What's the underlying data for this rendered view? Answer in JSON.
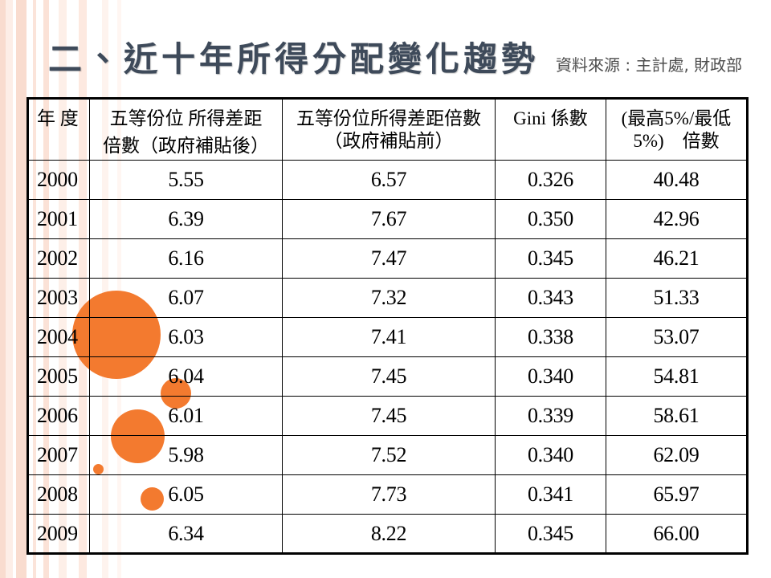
{
  "theme": {
    "title_color": "#3e4a5a",
    "accent_orange": "#f37a2f",
    "stripe_pink": "#f9dccf",
    "table_border": "#000000"
  },
  "slide": {
    "title": "二、近十年所得分配變化趨勢",
    "source": "資料來源 : 主計處, 財政部"
  },
  "table": {
    "headers": [
      {
        "lines": [
          "年 度"
        ]
      },
      {
        "lines": [
          "五等份位 所得差距",
          "倍數（政府補貼後）"
        ]
      },
      {
        "lines": [
          "五等份位所得差距倍數",
          "（政府補貼前）"
        ]
      },
      {
        "lines": [
          "Gini 係數"
        ]
      },
      {
        "lines": [
          "(最高5%/最低",
          "5%)　倍數"
        ]
      }
    ],
    "rows": [
      {
        "year": "2000",
        "ratio_after_subsidy": "5.55",
        "ratio_before_subsidy": "6.57",
        "gini": "0.326",
        "top_bottom_5pct_ratio": "40.48"
      },
      {
        "year": "2001",
        "ratio_after_subsidy": "6.39",
        "ratio_before_subsidy": "7.67",
        "gini": "0.350",
        "top_bottom_5pct_ratio": "42.96"
      },
      {
        "year": "2002",
        "ratio_after_subsidy": "6.16",
        "ratio_before_subsidy": "7.47",
        "gini": "0.345",
        "top_bottom_5pct_ratio": "46.21"
      },
      {
        "year": "2003",
        "ratio_after_subsidy": "6.07",
        "ratio_before_subsidy": "7.32",
        "gini": "0.343",
        "top_bottom_5pct_ratio": "51.33"
      },
      {
        "year": "2004",
        "ratio_after_subsidy": "6.03",
        "ratio_before_subsidy": "7.41",
        "gini": "0.338",
        "top_bottom_5pct_ratio": "53.07"
      },
      {
        "year": "2005",
        "ratio_after_subsidy": "6.04",
        "ratio_before_subsidy": "7.45",
        "gini": "0.340",
        "top_bottom_5pct_ratio": "54.81"
      },
      {
        "year": "2006",
        "ratio_after_subsidy": "6.01",
        "ratio_before_subsidy": "7.45",
        "gini": "0.339",
        "top_bottom_5pct_ratio": "58.61"
      },
      {
        "year": "2007",
        "ratio_after_subsidy": "5.98",
        "ratio_before_subsidy": "7.52",
        "gini": "0.340",
        "top_bottom_5pct_ratio": "62.09"
      },
      {
        "year": "2008",
        "ratio_after_subsidy": "6.05",
        "ratio_before_subsidy": "7.73",
        "gini": "0.341",
        "top_bottom_5pct_ratio": "65.97"
      },
      {
        "year": "2009",
        "ratio_after_subsidy": "6.34",
        "ratio_before_subsidy": "8.22",
        "gini": "0.345",
        "top_bottom_5pct_ratio": "66.00"
      }
    ]
  }
}
